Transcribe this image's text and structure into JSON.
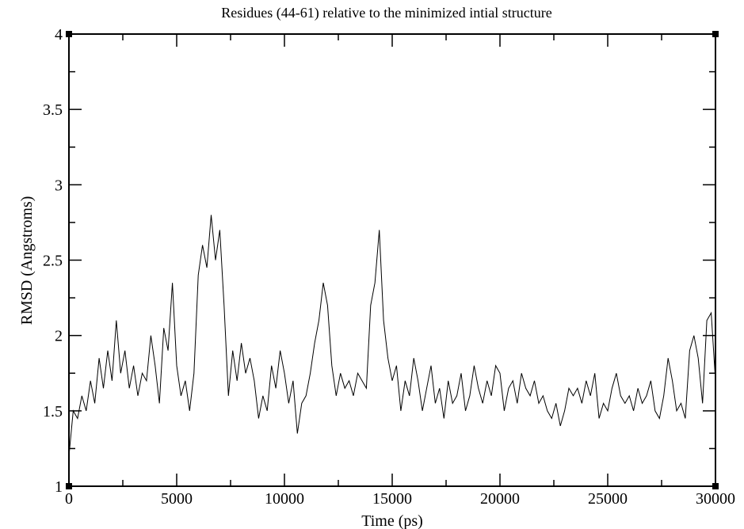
{
  "chart_data": {
    "type": "line",
    "title": "Residues (44-61) relative to the minimized intial structure",
    "xlabel": "Time (ps)",
    "ylabel": "RMSD (Angstroms)",
    "xlim": [
      0,
      30000
    ],
    "ylim": [
      1,
      4
    ],
    "x_ticks": [
      0,
      5000,
      10000,
      15000,
      20000,
      25000,
      30000
    ],
    "x_tick_labels": [
      "0",
      "5000",
      "10000",
      "15000",
      "20000",
      "25000",
      "30000"
    ],
    "y_ticks": [
      1,
      1.5,
      2,
      2.5,
      3,
      3.5,
      4
    ],
    "y_tick_labels": [
      "1",
      "1.5",
      "2",
      "2.5",
      "3",
      "3.5",
      "4"
    ],
    "grid": false,
    "line_color": "#000000",
    "series": [
      {
        "name": "RMSD",
        "x_start": 0,
        "x_step": 200,
        "values": [
          1.2,
          1.5,
          1.45,
          1.6,
          1.5,
          1.7,
          1.55,
          1.85,
          1.65,
          1.9,
          1.7,
          2.1,
          1.75,
          1.9,
          1.65,
          1.8,
          1.6,
          1.75,
          1.7,
          2.0,
          1.8,
          1.55,
          2.05,
          1.9,
          2.35,
          1.8,
          1.6,
          1.7,
          1.5,
          1.75,
          2.4,
          2.6,
          2.45,
          2.8,
          2.5,
          2.7,
          2.2,
          1.6,
          1.9,
          1.7,
          1.95,
          1.75,
          1.85,
          1.7,
          1.45,
          1.6,
          1.5,
          1.8,
          1.65,
          1.9,
          1.75,
          1.55,
          1.7,
          1.35,
          1.55,
          1.6,
          1.75,
          1.95,
          2.1,
          2.35,
          2.2,
          1.8,
          1.6,
          1.75,
          1.65,
          1.7,
          1.6,
          1.75,
          1.7,
          1.65,
          2.2,
          2.35,
          2.7,
          2.1,
          1.85,
          1.7,
          1.8,
          1.5,
          1.7,
          1.6,
          1.85,
          1.7,
          1.5,
          1.65,
          1.8,
          1.55,
          1.65,
          1.45,
          1.7,
          1.55,
          1.6,
          1.75,
          1.5,
          1.6,
          1.8,
          1.65,
          1.55,
          1.7,
          1.6,
          1.8,
          1.75,
          1.5,
          1.65,
          1.7,
          1.55,
          1.75,
          1.65,
          1.6,
          1.7,
          1.55,
          1.6,
          1.5,
          1.45,
          1.55,
          1.4,
          1.5,
          1.65,
          1.6,
          1.65,
          1.55,
          1.7,
          1.6,
          1.75,
          1.45,
          1.55,
          1.5,
          1.65,
          1.75,
          1.6,
          1.55,
          1.6,
          1.5,
          1.65,
          1.55,
          1.6,
          1.7,
          1.5,
          1.45,
          1.6,
          1.85,
          1.7,
          1.5,
          1.55,
          1.45,
          1.9,
          2.0,
          1.85,
          1.55,
          2.1,
          2.15,
          1.7
        ]
      }
    ]
  }
}
